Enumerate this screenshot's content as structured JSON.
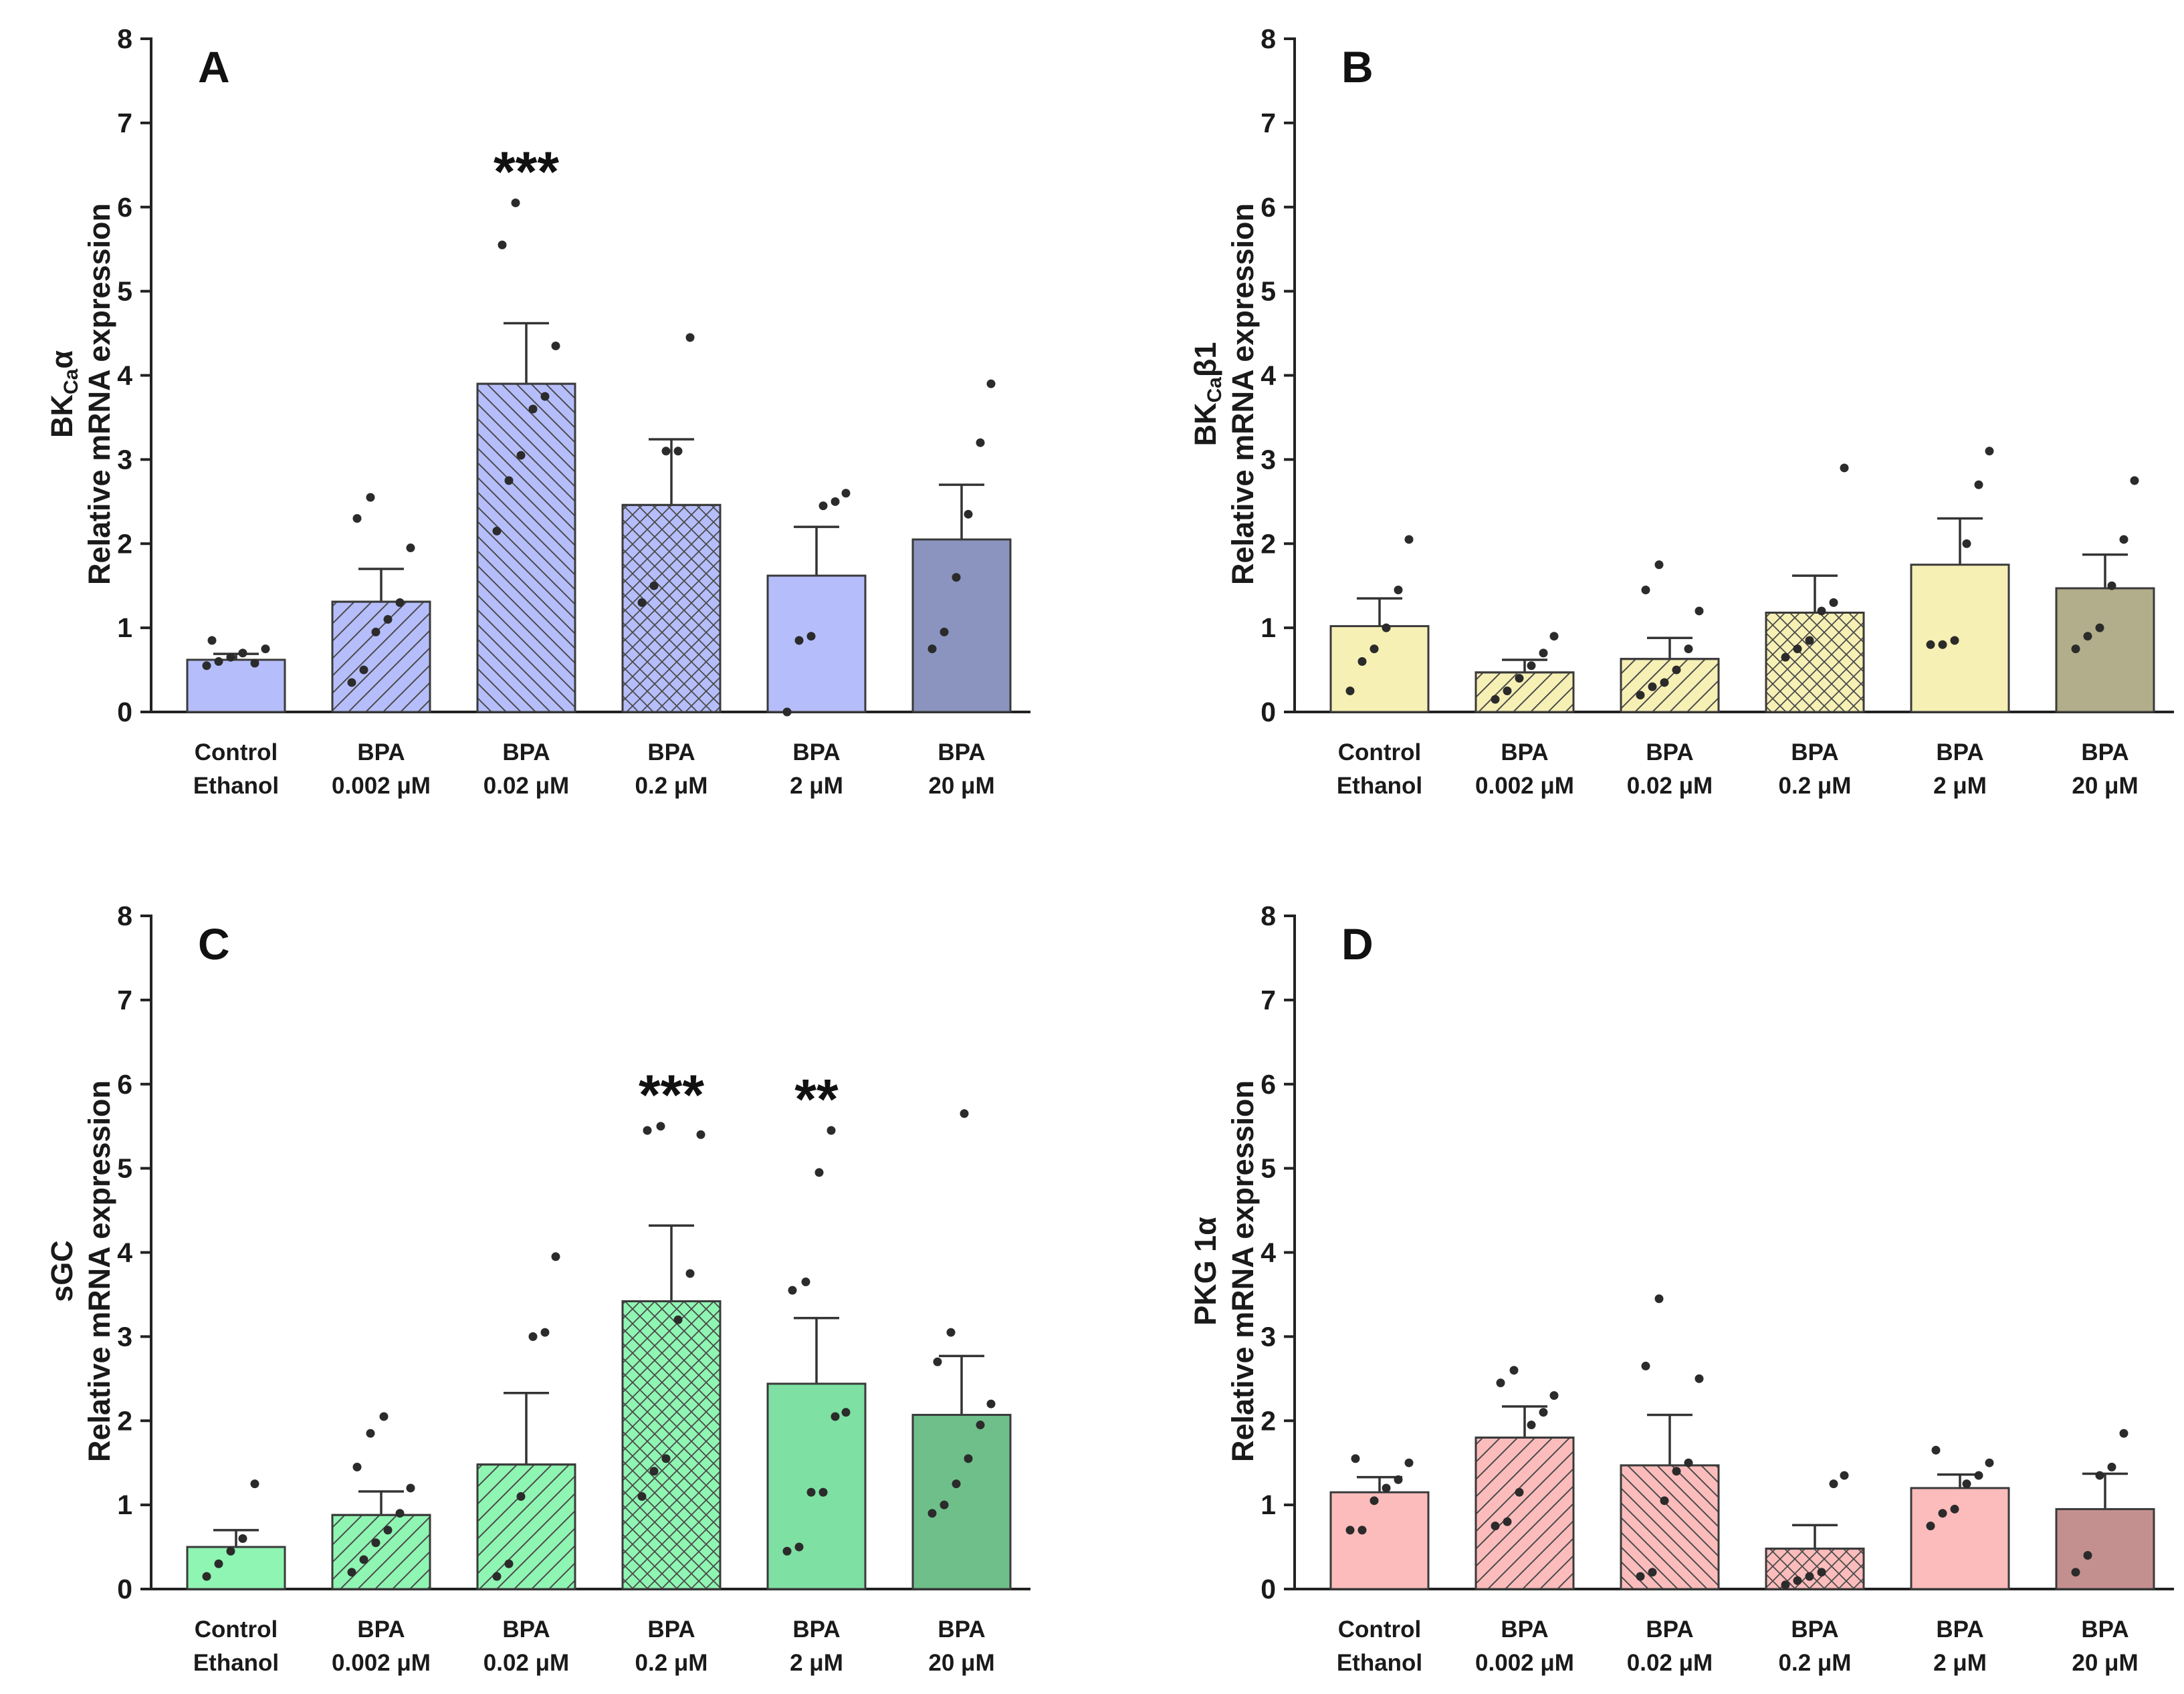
{
  "chart_data": [
    {
      "panel_label": "A",
      "type": "bar",
      "gene_label": "BK",
      "gene_subscript": "Ca",
      "gene_suffix": "α",
      "ylabel": "Relative mRNA expression",
      "ylim": [
        0,
        8
      ],
      "yticks": [
        "0",
        "1",
        "2",
        "3",
        "4",
        "5",
        "6",
        "7",
        "8"
      ],
      "categories": [
        [
          "Control",
          "Ethanol"
        ],
        [
          "BPA",
          "0.002 μM"
        ],
        [
          "BPA",
          "0.02 μM"
        ],
        [
          "BPA",
          "0.2 μM"
        ],
        [
          "BPA",
          "2 μM"
        ],
        [
          "BPA",
          "20 μM"
        ]
      ],
      "patterns": [
        "none",
        "diag-forward",
        "diag-back",
        "crosshatch",
        "none",
        "none"
      ],
      "colors": [
        "#b5befa",
        "#b5befa",
        "#b5befa",
        "#b5befa",
        "#b5befa",
        "#8a94bf"
      ],
      "values": [
        0.62,
        1.31,
        3.9,
        2.46,
        1.62,
        2.05
      ],
      "sem": [
        0.07,
        0.39,
        0.72,
        0.78,
        0.58,
        0.65
      ],
      "points": [
        [
          0.55,
          0.6,
          0.65,
          0.7,
          0.58,
          0.75,
          0.85
        ],
        [
          0.35,
          0.5,
          0.95,
          1.1,
          1.3,
          1.95,
          2.3,
          2.55
        ],
        [
          2.15,
          2.75,
          3.05,
          3.6,
          3.75,
          4.35,
          5.55,
          6.05
        ],
        [
          1.3,
          1.5,
          3.1,
          3.1,
          4.45
        ],
        [
          0.0,
          0.85,
          0.9,
          2.45,
          2.5,
          2.6
        ],
        [
          0.75,
          0.95,
          1.6,
          2.35,
          3.2,
          3.9
        ]
      ],
      "significance": [
        "",
        "",
        "***",
        "",
        "",
        ""
      ]
    },
    {
      "panel_label": "B",
      "type": "bar",
      "gene_label": "BK",
      "gene_subscript": "Ca",
      "gene_suffix": "β1",
      "ylabel": "Relative mRNA expression",
      "ylim": [
        0,
        8
      ],
      "yticks": [
        "0",
        "1",
        "2",
        "3",
        "4",
        "5",
        "6",
        "7",
        "8"
      ],
      "categories": [
        [
          "Control",
          "Ethanol"
        ],
        [
          "BPA",
          "0.002 μM"
        ],
        [
          "BPA",
          "0.02 μM"
        ],
        [
          "BPA",
          "0.2 μM"
        ],
        [
          "BPA",
          "2 μM"
        ],
        [
          "BPA",
          "20 μM"
        ]
      ],
      "patterns": [
        "none",
        "diag-forward",
        "diag-forward",
        "crosshatch",
        "none",
        "none"
      ],
      "colors": [
        "#f7f0b5",
        "#f7f0b5",
        "#f7f0b5",
        "#f7f0b5",
        "#f7f0b5",
        "#b2ad8a"
      ],
      "values": [
        1.02,
        0.47,
        0.63,
        1.18,
        1.75,
        1.47
      ],
      "sem": [
        0.33,
        0.15,
        0.25,
        0.44,
        0.55,
        0.4
      ],
      "points": [
        [
          0.25,
          0.6,
          0.75,
          1.0,
          1.45,
          2.05
        ],
        [
          0.15,
          0.25,
          0.4,
          0.55,
          0.7,
          0.9
        ],
        [
          0.2,
          0.3,
          0.35,
          0.5,
          0.75,
          1.2,
          1.45,
          1.75
        ],
        [
          0.65,
          0.75,
          0.85,
          1.2,
          1.3,
          2.9
        ],
        [
          0.8,
          0.8,
          0.85,
          2.0,
          2.7,
          3.1
        ],
        [
          0.75,
          0.9,
          1.0,
          1.5,
          2.05,
          2.75
        ]
      ],
      "significance": [
        "",
        "",
        "",
        "",
        "",
        ""
      ]
    },
    {
      "panel_label": "C",
      "type": "bar",
      "gene_label": "sGC",
      "gene_subscript": "",
      "gene_suffix": "",
      "ylabel": "Relative mRNA expression",
      "ylim": [
        0,
        8
      ],
      "yticks": [
        "0",
        "1",
        "2",
        "3",
        "4",
        "5",
        "6",
        "7",
        "8"
      ],
      "categories": [
        [
          "Control",
          "Ethanol"
        ],
        [
          "BPA",
          "0.002 μM"
        ],
        [
          "BPA",
          "0.02 μM"
        ],
        [
          "BPA",
          "0.2 μM"
        ],
        [
          "BPA",
          "2 μM"
        ],
        [
          "BPA",
          "20 μM"
        ]
      ],
      "patterns": [
        "none",
        "diag-forward",
        "diag-forward",
        "crosshatch",
        "none",
        "none"
      ],
      "colors": [
        "#8ff5b2",
        "#8ff5b2",
        "#8ff5b2",
        "#8ff5b2",
        "#7ee0a2",
        "#6fbf8a"
      ],
      "values": [
        0.5,
        0.88,
        1.48,
        3.42,
        2.44,
        2.07
      ],
      "sem": [
        0.2,
        0.28,
        0.85,
        0.9,
        0.78,
        0.7
      ],
      "points": [
        [
          0.15,
          0.3,
          0.45,
          0.6,
          1.25
        ],
        [
          0.2,
          0.35,
          0.55,
          0.7,
          0.9,
          1.2,
          1.45,
          1.85,
          2.05
        ],
        [
          0.15,
          0.3,
          1.1,
          3.0,
          3.05,
          3.95
        ],
        [
          1.1,
          1.4,
          1.55,
          3.2,
          3.75,
          5.4,
          5.45,
          5.5
        ],
        [
          0.45,
          0.5,
          1.15,
          1.15,
          2.05,
          2.1,
          3.55,
          3.65,
          4.95,
          5.45
        ],
        [
          0.9,
          1.0,
          1.25,
          1.55,
          1.95,
          2.2,
          2.7,
          3.05,
          5.65
        ]
      ],
      "significance": [
        "",
        "",
        "",
        "***",
        "**",
        ""
      ]
    },
    {
      "panel_label": "D",
      "type": "bar",
      "gene_label": "PKG 1α",
      "gene_subscript": "",
      "gene_suffix": "",
      "ylabel": "Relative mRNA expression",
      "ylim": [
        0,
        8
      ],
      "yticks": [
        "0",
        "1",
        "2",
        "3",
        "4",
        "5",
        "6",
        "7",
        "8"
      ],
      "categories": [
        [
          "Control",
          "Ethanol"
        ],
        [
          "BPA",
          "0.002 μM"
        ],
        [
          "BPA",
          "0.02 μM"
        ],
        [
          "BPA",
          "0.2 μM"
        ],
        [
          "BPA",
          "2 μM"
        ],
        [
          "BPA",
          "20 μM"
        ]
      ],
      "patterns": [
        "none",
        "diag-forward",
        "diag-back",
        "crosshatch",
        "none",
        "none"
      ],
      "colors": [
        "#fcbcbc",
        "#fcbcbc",
        "#fcbcbc",
        "#fcbcbc",
        "#fcbcbc",
        "#c4908f"
      ],
      "values": [
        1.15,
        1.8,
        1.47,
        0.48,
        1.2,
        0.95
      ],
      "sem": [
        0.18,
        0.37,
        0.6,
        0.28,
        0.16,
        0.42
      ],
      "points": [
        [
          0.7,
          0.7,
          1.05,
          1.2,
          1.3,
          1.5,
          1.55
        ],
        [
          0.75,
          0.8,
          1.15,
          1.95,
          2.1,
          2.3,
          2.45,
          2.6
        ],
        [
          0.15,
          0.2,
          1.05,
          1.4,
          1.5,
          2.5,
          2.65,
          3.45
        ],
        [
          0.05,
          0.1,
          0.15,
          0.2,
          1.25,
          1.35
        ],
        [
          0.75,
          0.9,
          0.95,
          1.25,
          1.35,
          1.5,
          1.65
        ],
        [
          0.2,
          0.4,
          1.35,
          1.45,
          1.85
        ]
      ],
      "significance": [
        "",
        "",
        "",
        "",
        "",
        ""
      ]
    }
  ]
}
